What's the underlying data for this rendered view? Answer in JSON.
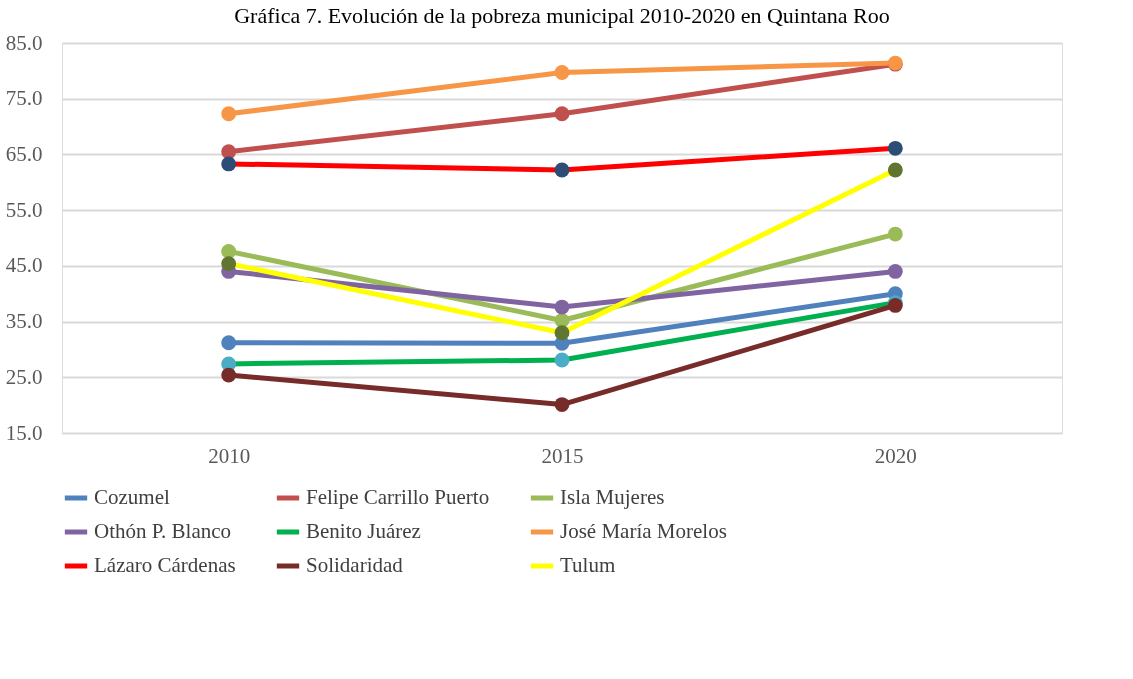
{
  "chart_data": {
    "type": "line",
    "title": "Gráfica 7. Evolución de la pobreza municipal 2010-2020 en Quintana Roo",
    "categories": [
      "2010",
      "2015",
      "2020"
    ],
    "ylim": [
      15,
      85
    ],
    "yticks": [
      {
        "value": 15,
        "label": "15.0"
      },
      {
        "value": 25,
        "label": "25.0"
      },
      {
        "value": 35,
        "label": "35.0"
      },
      {
        "value": 45,
        "label": "45.0"
      },
      {
        "value": 55,
        "label": "55.0"
      },
      {
        "value": 65,
        "label": "65.0"
      },
      {
        "value": 75,
        "label": "75.0"
      },
      {
        "value": 85,
        "label": "85.0"
      }
    ],
    "grid": "y",
    "legend": "bottom",
    "marker": "circle",
    "line_style": "solid",
    "series": [
      {
        "name": "Cozumel",
        "color": "#4f81bd",
        "colors": [
          "#4f81bd",
          "#4f81bd",
          "#4f81bd"
        ],
        "values": [
          31.2,
          31.1,
          40.0
        ]
      },
      {
        "name": "Felipe Carrillo Puerto",
        "color": "#c0504d",
        "colors": [
          "#c0504d",
          "#c0504d",
          "#c0504d"
        ],
        "values": [
          65.5,
          72.3,
          81.2
        ]
      },
      {
        "name": "Isla Mujeres",
        "color": "#9bbb59",
        "colors": [
          "#9bbb59",
          "#9bbb59",
          "#9bbb59"
        ],
        "values": [
          47.6,
          35.2,
          50.7
        ]
      },
      {
        "name": "Othón P. Blanco",
        "color": "#8064a2",
        "colors": [
          "#8064a2",
          "#8064a2",
          "#8064a2"
        ],
        "values": [
          44.0,
          37.6,
          44.0
        ]
      },
      {
        "name": "Benito Juárez",
        "color": "#00b050",
        "colors": [
          "#4bacc6",
          "#4bacc6",
          "#4bacc6"
        ],
        "values": [
          27.4,
          28.1,
          38.4
        ]
      },
      {
        "name": "José María Morelos",
        "color": "#f79646",
        "colors": [
          "#f79646",
          "#f79646",
          "#f79646"
        ],
        "values": [
          72.3,
          79.7,
          81.4
        ]
      },
      {
        "name": "Lázaro Cárdenas",
        "color": "#ff0000",
        "colors": [
          "#2c4d75",
          "#2c4d75",
          "#2c4d75"
        ],
        "values": [
          63.3,
          62.2,
          66.1
        ]
      },
      {
        "name": "Solidaridad",
        "color": "#772c2a",
        "colors": [
          "#772c2a",
          "#772c2a",
          "#772c2a"
        ],
        "values": [
          25.4,
          20.1,
          37.9
        ]
      },
      {
        "name": "Tulum",
        "color": "#ffff00",
        "colors": [
          "#5f7530",
          "#5f7530",
          "#5f7530"
        ],
        "values": [
          45.4,
          33.0,
          62.2
        ]
      }
    ]
  }
}
